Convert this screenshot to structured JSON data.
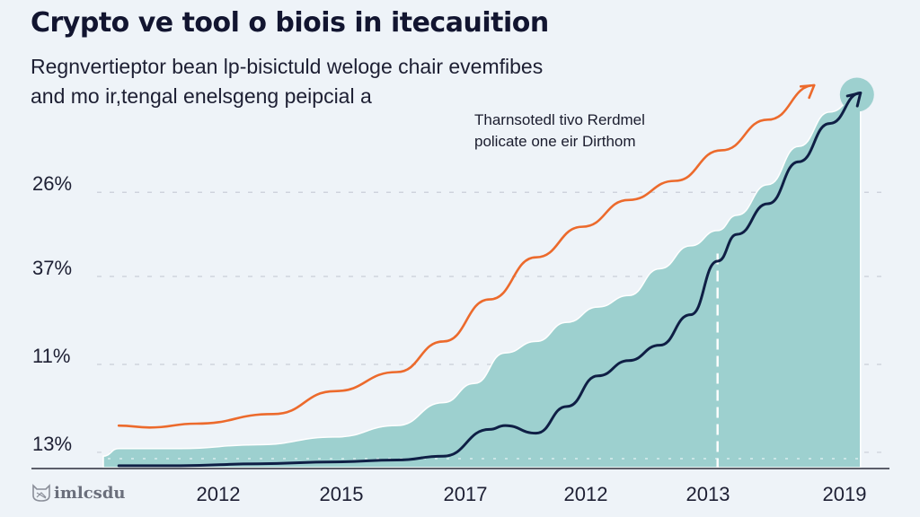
{
  "title": "Crypto ve tool o biois in itecauition",
  "subtitle_lines": [
    "Regnvertieptor bean lp-bisictuld weloge chair evemfibes",
    "and mo ir,tengal enelsgeng peipcial a"
  ],
  "annotation_lines": [
    "Tharnsotedl tivo Rerdmel",
    "policate one eir Dirthom"
  ],
  "brand": {
    "icon": "cat-face-icon",
    "label": "imlcsdu"
  },
  "colors": {
    "background": "#eef3f8",
    "area_fill": "#9dd0cf",
    "orange_line": "#ec6a2c",
    "navy_line": "#0f1f45",
    "grid": "#c9ced8",
    "axis": "#2a2d3a"
  },
  "chart_data": {
    "type": "line",
    "title": "Crypto ve tool o biois in itecauition",
    "subtitle": "Regnvertieptor bean lp-bisictuld weloge chair evemfibes and mo ir,tengal enelsgeng peipcial a",
    "xlabel": "",
    "ylabel": "",
    "x_tick_labels": [
      "2012",
      "2015",
      "2017",
      "2012",
      "2013",
      "2019"
    ],
    "y_tick_labels": [
      "26%",
      "37%",
      "11%",
      "13%"
    ],
    "y_tick_positions": [
      72,
      50,
      27,
      4
    ],
    "ylim": [
      0,
      100
    ],
    "xlim": [
      0,
      100
    ],
    "grid": "horizontal-dashed",
    "legend": "none",
    "annotation": "Tharnsotedl tivo Rerdmel policate one eir Dirthom",
    "vertical_marker_x": 79.5,
    "series": [
      {
        "name": "orange",
        "kind": "line-arrow",
        "x": [
          2,
          6,
          12,
          22,
          30,
          38,
          44,
          50,
          56,
          62,
          68,
          74,
          80,
          86,
          92
        ],
        "y": [
          11,
          10.5,
          11.5,
          14,
          20,
          25,
          33,
          44,
          55,
          63,
          70,
          75,
          83,
          91,
          100
        ]
      },
      {
        "name": "navy",
        "kind": "line-arrow",
        "x": [
          2,
          10,
          20,
          30,
          38,
          44,
          50,
          52,
          56,
          60,
          64,
          68,
          72,
          76,
          79.5,
          82,
          86,
          90,
          94,
          98
        ],
        "y": [
          0.5,
          0.5,
          1,
          1.5,
          2,
          3,
          10,
          11,
          9,
          16,
          24,
          28,
          32,
          40,
          54,
          61,
          69,
          80,
          90,
          98
        ]
      },
      {
        "name": "teal-area",
        "kind": "area",
        "x": [
          0,
          2,
          10,
          20,
          30,
          38,
          44,
          48,
          52,
          56,
          60,
          64,
          68,
          72,
          76,
          79.5,
          82,
          86,
          90,
          94,
          98
        ],
        "y": [
          3,
          5,
          5,
          6,
          8,
          11,
          17,
          22,
          30,
          33,
          38,
          42,
          45,
          52,
          58,
          62,
          66,
          74,
          84,
          93,
          98
        ]
      }
    ]
  }
}
